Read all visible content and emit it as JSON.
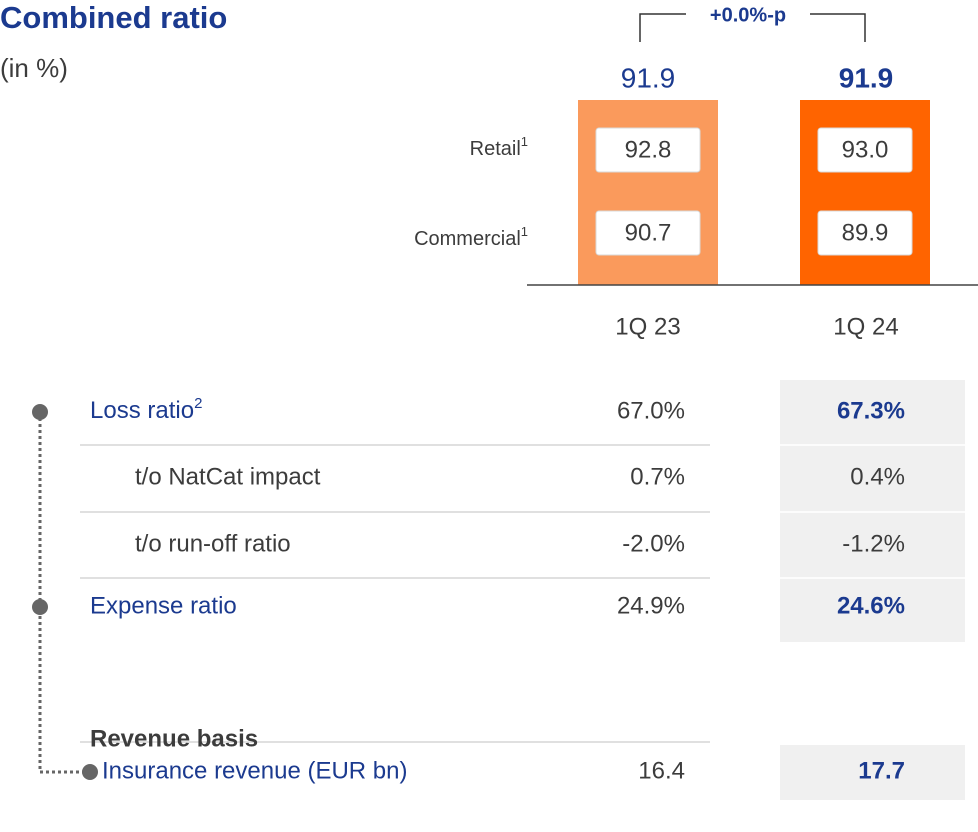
{
  "header": {
    "title": "Combined ratio",
    "subtitle": "(in %)"
  },
  "chart": {
    "delta": "+0.0%-p",
    "periods": [
      "1Q 23",
      "1Q 24"
    ],
    "totals": [
      "91.9",
      "91.9"
    ],
    "segments": [
      {
        "label": "Retail",
        "note": "1",
        "values": [
          "92.8",
          "93.0"
        ]
      },
      {
        "label": "Commercial",
        "note": "1",
        "values": [
          "90.7",
          "89.9"
        ]
      }
    ]
  },
  "table": {
    "rows": [
      {
        "label": "Loss ratio",
        "note": "2",
        "values": [
          "67.0%",
          "67.3%"
        ]
      },
      {
        "label": "t/o NatCat impact",
        "values": [
          "0.7%",
          "0.4%"
        ]
      },
      {
        "label": "t/o run-off ratio",
        "values": [
          "-2.0%",
          "-1.2%"
        ]
      },
      {
        "label": "Expense ratio",
        "values": [
          "24.9%",
          "24.6%"
        ]
      }
    ],
    "section": "Revenue basis",
    "revenue": {
      "label": "Insurance revenue (EUR bn)",
      "values": [
        "16.4",
        "17.7"
      ]
    }
  }
}
